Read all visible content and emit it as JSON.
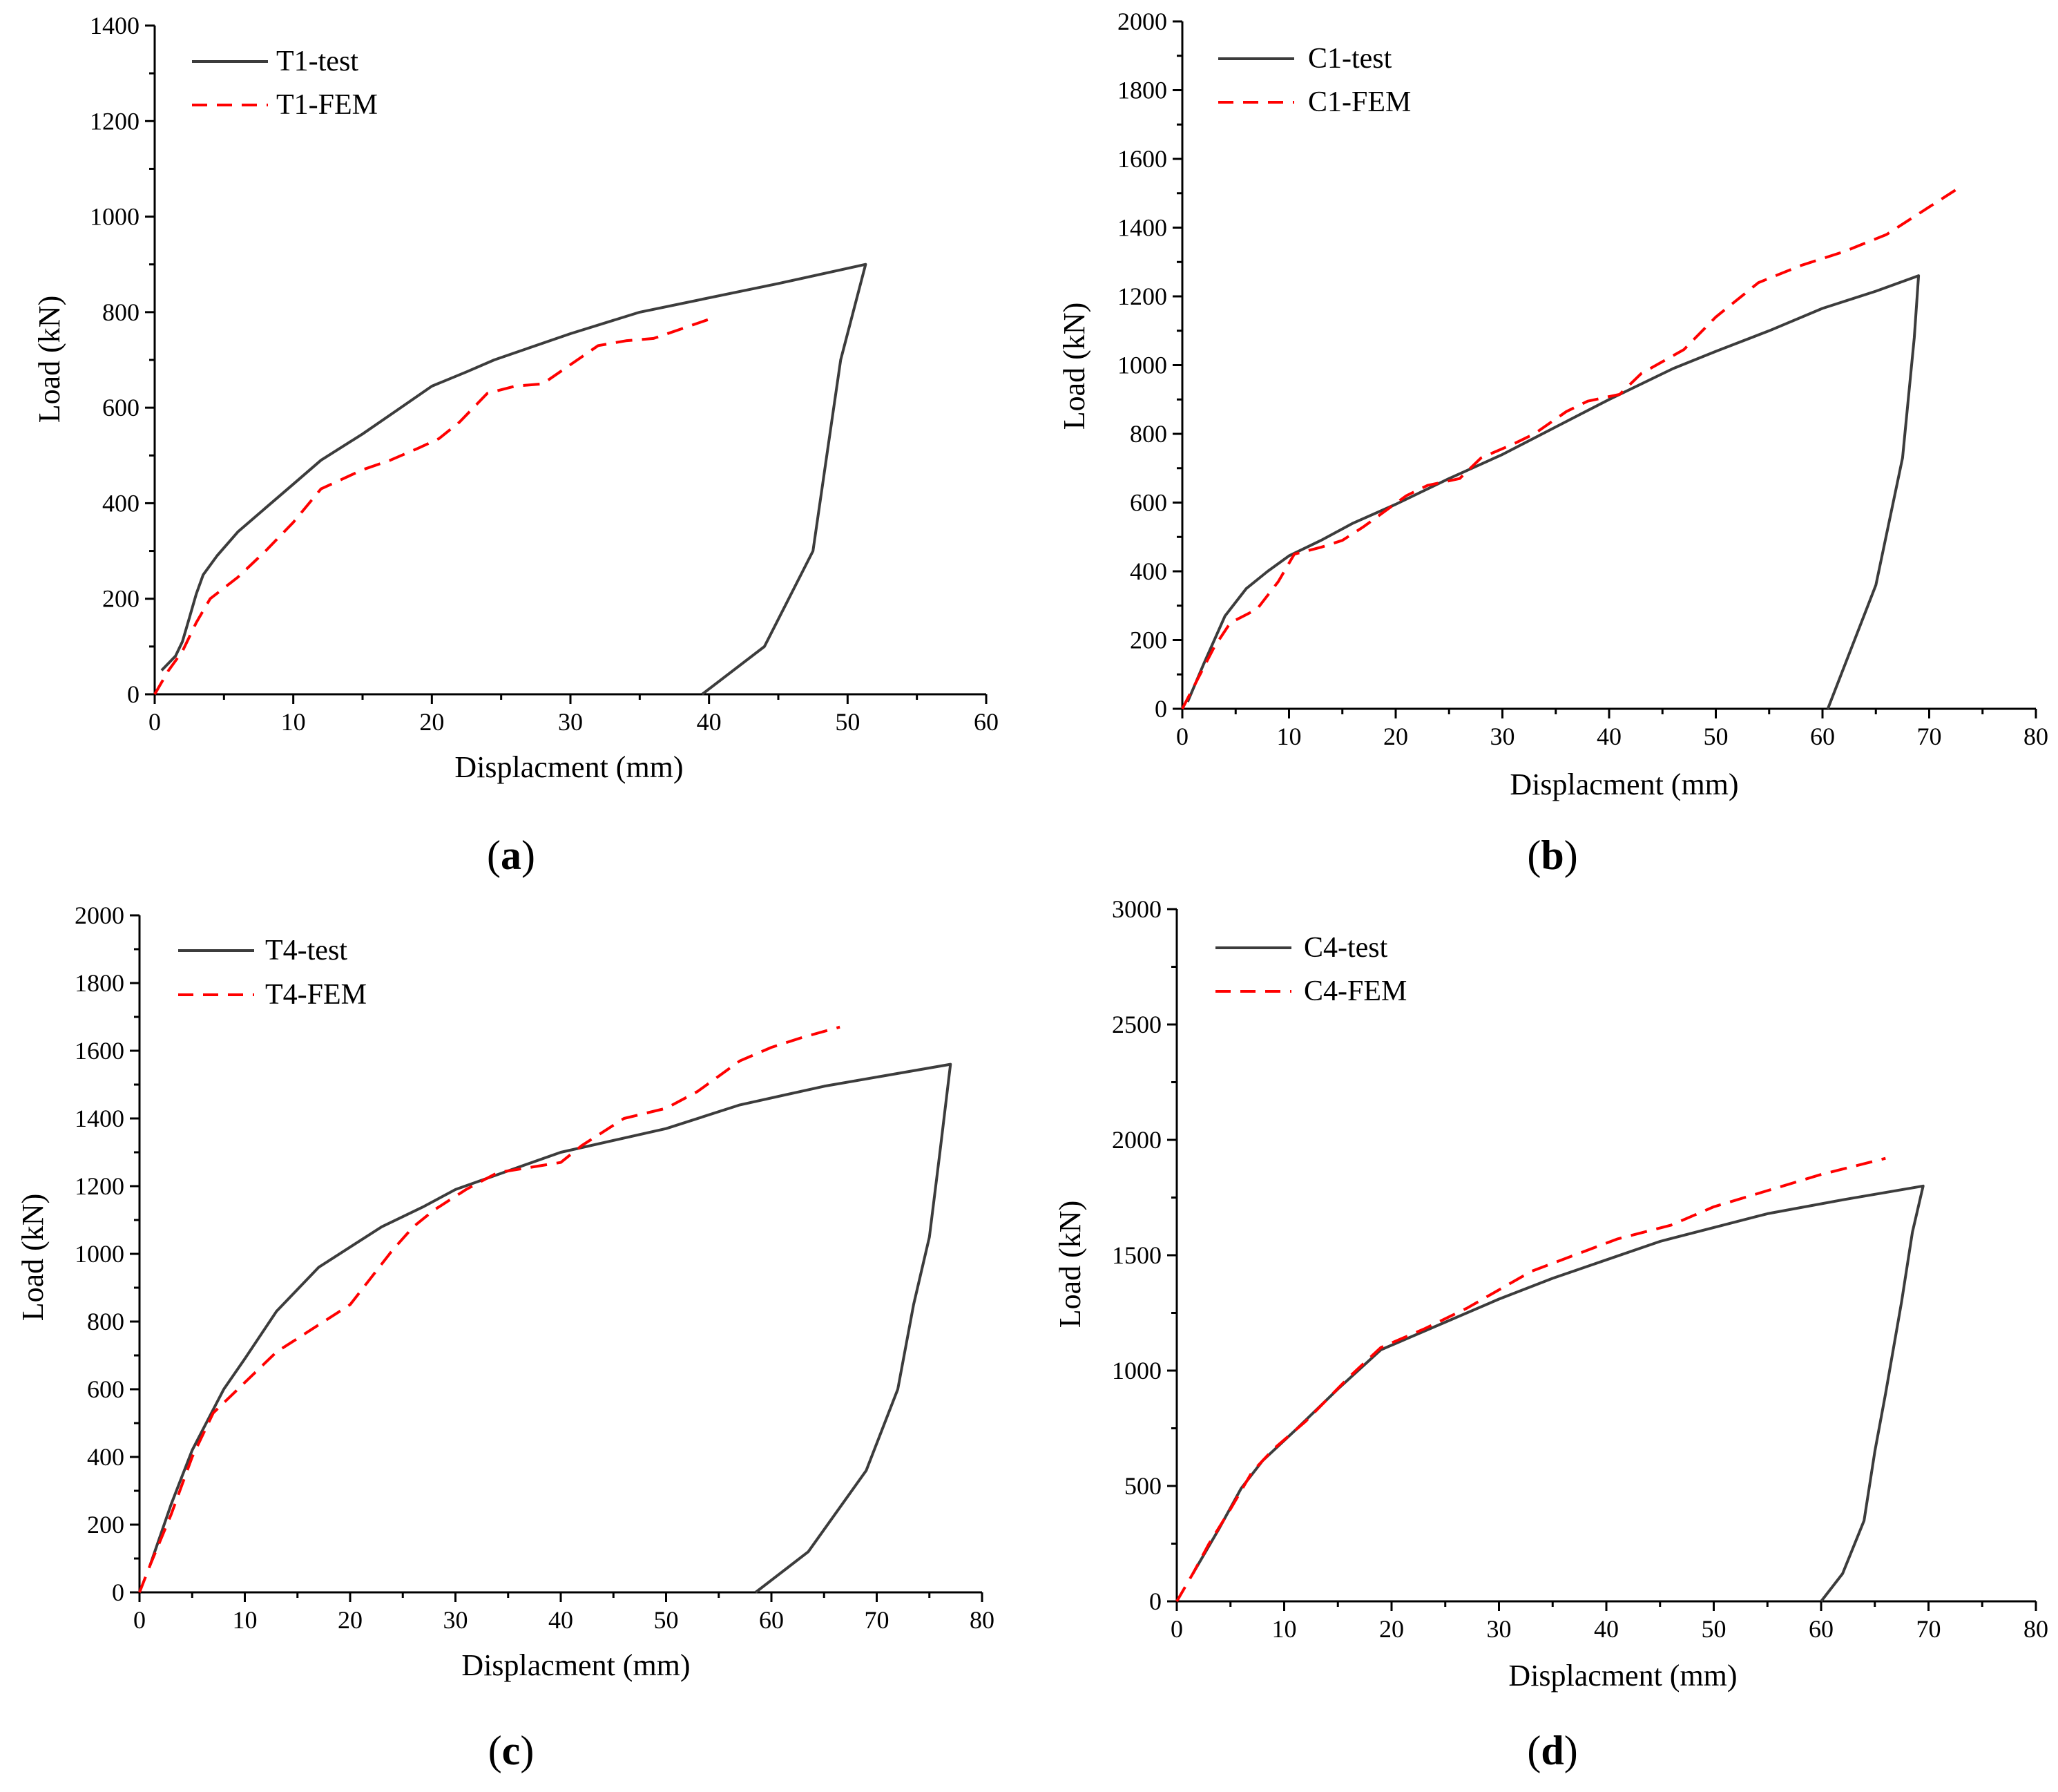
{
  "chart_data": [
    {
      "type": "line",
      "label": "a",
      "xlabel": "Displacment (mm)",
      "ylabel": "Load (kN)",
      "xlim": [
        0,
        60
      ],
      "ylim": [
        0,
        1400
      ],
      "xticks": [
        0,
        10,
        20,
        30,
        40,
        50,
        60
      ],
      "yticks": [
        0,
        200,
        400,
        600,
        800,
        1000,
        1200,
        1400
      ],
      "grid": false,
      "legend": "top-left",
      "series": [
        {
          "name": "T1-test",
          "style": "solid",
          "color": "#3c3c3c",
          "points": [
            [
              0.5,
              50
            ],
            [
              1.5,
              80
            ],
            [
              2,
              110
            ],
            [
              2.5,
              160
            ],
            [
              3,
              210
            ],
            [
              3.5,
              250
            ],
            [
              4.5,
              290
            ],
            [
              6,
              340
            ],
            [
              8,
              390
            ],
            [
              10,
              440
            ],
            [
              12,
              490
            ],
            [
              15,
              545
            ],
            [
              17.5,
              595
            ],
            [
              20,
              645
            ],
            [
              22.5,
              675
            ],
            [
              24.5,
              700
            ],
            [
              30,
              755
            ],
            [
              35,
              800
            ],
            [
              45,
              860
            ],
            [
              51.3,
              900
            ],
            [
              49.5,
              700
            ],
            [
              48.5,
              500
            ],
            [
              47.5,
              300
            ],
            [
              44,
              100
            ],
            [
              39.5,
              0
            ]
          ]
        },
        {
          "name": "T1-FEM",
          "style": "dashed",
          "color": "#ff0000",
          "points": [
            [
              0,
              0
            ],
            [
              1,
              50
            ],
            [
              2,
              90
            ],
            [
              3,
              150
            ],
            [
              4,
              200
            ],
            [
              6,
              245
            ],
            [
              8,
              300
            ],
            [
              10,
              360
            ],
            [
              12,
              430
            ],
            [
              15,
              470
            ],
            [
              17,
              490
            ],
            [
              19,
              515
            ],
            [
              20.5,
              535
            ],
            [
              22,
              570
            ],
            [
              24,
              630
            ],
            [
              26,
              645
            ],
            [
              28,
              650
            ],
            [
              30,
              690
            ],
            [
              32,
              730
            ],
            [
              34,
              740
            ],
            [
              36,
              745
            ],
            [
              38,
              765
            ],
            [
              40,
              785
            ]
          ]
        }
      ]
    },
    {
      "type": "line",
      "label": "b",
      "xlabel": "Displacment (mm)",
      "ylabel": "Load (kN)",
      "xlim": [
        0,
        80
      ],
      "ylim": [
        0,
        2000
      ],
      "xticks": [
        0,
        10,
        20,
        30,
        40,
        50,
        60,
        70,
        80
      ],
      "yticks": [
        0,
        200,
        400,
        600,
        800,
        1000,
        1200,
        1400,
        1600,
        1800,
        2000
      ],
      "grid": false,
      "legend": "top-left",
      "series": [
        {
          "name": "C1-test",
          "style": "solid",
          "color": "#3c3c3c",
          "points": [
            [
              0.5,
              20
            ],
            [
              2,
              130
            ],
            [
              4,
              270
            ],
            [
              6,
              350
            ],
            [
              8,
              400
            ],
            [
              10,
              445
            ],
            [
              13,
              490
            ],
            [
              16,
              540
            ],
            [
              20,
              595
            ],
            [
              25,
              670
            ],
            [
              30,
              740
            ],
            [
              35,
              820
            ],
            [
              40,
              900
            ],
            [
              46,
              990
            ],
            [
              50,
              1040
            ],
            [
              55,
              1100
            ],
            [
              60,
              1165
            ],
            [
              65,
              1215
            ],
            [
              69,
              1260
            ],
            [
              68.6,
              1080
            ],
            [
              67.5,
              730
            ],
            [
              65,
              360
            ],
            [
              60.5,
              0
            ]
          ]
        },
        {
          "name": "C1-FEM",
          "style": "dashed",
          "color": "#ff0000",
          "points": [
            [
              0,
              0
            ],
            [
              1.5,
              90
            ],
            [
              3,
              180
            ],
            [
              4.5,
              250
            ],
            [
              7,
              290
            ],
            [
              9,
              370
            ],
            [
              10.5,
              450
            ],
            [
              13,
              470
            ],
            [
              15,
              490
            ],
            [
              17,
              530
            ],
            [
              19,
              575
            ],
            [
              21,
              620
            ],
            [
              23,
              650
            ],
            [
              26,
              670
            ],
            [
              28,
              730
            ],
            [
              31,
              770
            ],
            [
              33,
              800
            ],
            [
              36,
              865
            ],
            [
              38,
              895
            ],
            [
              41,
              915
            ],
            [
              43,
              975
            ],
            [
              47,
              1045
            ],
            [
              50,
              1140
            ],
            [
              54,
              1240
            ],
            [
              58,
              1290
            ],
            [
              62,
              1330
            ],
            [
              66,
              1380
            ],
            [
              70,
              1460
            ],
            [
              72.5,
              1510
            ]
          ]
        }
      ]
    },
    {
      "type": "line",
      "label": "c",
      "xlabel": "Displacment (mm)",
      "ylabel": "Load (kN)",
      "xlim": [
        0,
        80
      ],
      "ylim": [
        0,
        2000
      ],
      "xticks": [
        0,
        10,
        20,
        30,
        40,
        50,
        60,
        70,
        80
      ],
      "yticks": [
        0,
        200,
        400,
        600,
        800,
        1000,
        1200,
        1400,
        1600,
        1800,
        2000
      ],
      "grid": false,
      "legend": "top-left",
      "series": [
        {
          "name": "T4-test",
          "style": "solid",
          "color": "#3c3c3c",
          "points": [
            [
              1,
              80
            ],
            [
              3,
              260
            ],
            [
              5,
              420
            ],
            [
              8,
              600
            ],
            [
              10,
              690
            ],
            [
              13,
              830
            ],
            [
              17,
              960
            ],
            [
              20,
              1020
            ],
            [
              23,
              1080
            ],
            [
              27,
              1140
            ],
            [
              30,
              1190
            ],
            [
              35,
              1245
            ],
            [
              40,
              1300
            ],
            [
              50,
              1370
            ],
            [
              57,
              1440
            ],
            [
              65,
              1495
            ],
            [
              77,
              1560
            ],
            [
              76,
              1300
            ],
            [
              75,
              1050
            ],
            [
              73.5,
              850
            ],
            [
              72,
              600
            ],
            [
              69,
              360
            ],
            [
              63.5,
              120
            ],
            [
              58.5,
              0
            ]
          ]
        },
        {
          "name": "T4-FEM",
          "style": "dashed",
          "color": "#ff0000",
          "points": [
            [
              0,
              0
            ],
            [
              1,
              80
            ],
            [
              3,
              230
            ],
            [
              5,
              400
            ],
            [
              7,
              530
            ],
            [
              10,
              620
            ],
            [
              13,
              710
            ],
            [
              17,
              790
            ],
            [
              20,
              850
            ],
            [
              22,
              930
            ],
            [
              24,
              1010
            ],
            [
              26,
              1080
            ],
            [
              28,
              1130
            ],
            [
              31,
              1190
            ],
            [
              34,
              1240
            ],
            [
              36,
              1250
            ],
            [
              40,
              1270
            ],
            [
              42,
              1320
            ],
            [
              46,
              1400
            ],
            [
              50,
              1430
            ],
            [
              53,
              1480
            ],
            [
              57,
              1570
            ],
            [
              60,
              1610
            ],
            [
              63,
              1640
            ],
            [
              66.5,
              1670
            ]
          ]
        }
      ]
    },
    {
      "type": "line",
      "label": "d",
      "xlabel": "Displacment (mm)",
      "ylabel": "Load (kN)",
      "xlim": [
        0,
        80
      ],
      "ylim": [
        0,
        3000
      ],
      "xticks": [
        0,
        10,
        20,
        30,
        40,
        50,
        60,
        70,
        80
      ],
      "yticks": [
        0,
        500,
        1000,
        1500,
        2000,
        2500,
        3000
      ],
      "grid": false,
      "legend": "top-left",
      "series": [
        {
          "name": "C4-test",
          "style": "solid",
          "color": "#3c3c3c",
          "points": [
            [
              1.5,
              120
            ],
            [
              4,
              320
            ],
            [
              6,
              490
            ],
            [
              8,
              610
            ],
            [
              11,
              740
            ],
            [
              15,
              920
            ],
            [
              19,
              1090
            ],
            [
              25,
              1210
            ],
            [
              30,
              1310
            ],
            [
              35,
              1400
            ],
            [
              40,
              1480
            ],
            [
              45,
              1560
            ],
            [
              50,
              1620
            ],
            [
              55,
              1680
            ],
            [
              62,
              1740
            ],
            [
              69.5,
              1800
            ],
            [
              68.5,
              1600
            ],
            [
              67.5,
              1300
            ],
            [
              66,
              900
            ],
            [
              65,
              650
            ],
            [
              64,
              350
            ],
            [
              62,
              120
            ],
            [
              60,
              0
            ]
          ]
        },
        {
          "name": "C4-FEM",
          "style": "dashed",
          "color": "#ff0000",
          "points": [
            [
              0,
              0
            ],
            [
              1.5,
              120
            ],
            [
              3,
              250
            ],
            [
              5,
              400
            ],
            [
              7,
              560
            ],
            [
              9,
              660
            ],
            [
              12,
              780
            ],
            [
              16,
              970
            ],
            [
              19,
              1100
            ],
            [
              23,
              1180
            ],
            [
              27,
              1270
            ],
            [
              30,
              1350
            ],
            [
              33,
              1430
            ],
            [
              37,
              1500
            ],
            [
              41,
              1570
            ],
            [
              46,
              1630
            ],
            [
              50,
              1710
            ],
            [
              55,
              1780
            ],
            [
              60,
              1850
            ],
            [
              66,
              1920
            ]
          ]
        }
      ]
    }
  ]
}
